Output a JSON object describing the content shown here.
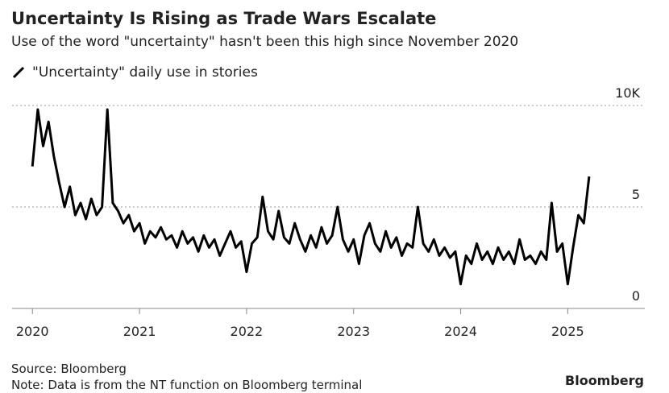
{
  "chart_data": {
    "type": "line",
    "title": "Uncertainty Is Rising as Trade Wars Escalate",
    "subtitle": "Use of the word \"uncertainty\" hasn't been this high since November 2020",
    "x": [
      2020.0,
      2020.05,
      2020.1,
      2020.15,
      2020.2,
      2020.25,
      2020.3,
      2020.35,
      2020.4,
      2020.45,
      2020.5,
      2020.55,
      2020.6,
      2020.65,
      2020.7,
      2020.75,
      2020.8,
      2020.85,
      2020.9,
      2020.95,
      2021.0,
      2021.05,
      2021.1,
      2021.15,
      2021.2,
      2021.25,
      2021.3,
      2021.35,
      2021.4,
      2021.45,
      2021.5,
      2021.55,
      2021.6,
      2021.65,
      2021.7,
      2021.75,
      2021.8,
      2021.85,
      2021.9,
      2021.95,
      2022.0,
      2022.05,
      2022.1,
      2022.15,
      2022.2,
      2022.25,
      2022.3,
      2022.35,
      2022.4,
      2022.45,
      2022.5,
      2022.55,
      2022.6,
      2022.65,
      2022.7,
      2022.75,
      2022.8,
      2022.85,
      2022.9,
      2022.95,
      2023.0,
      2023.05,
      2023.1,
      2023.15,
      2023.2,
      2023.25,
      2023.3,
      2023.35,
      2023.4,
      2023.45,
      2023.5,
      2023.55,
      2023.6,
      2023.65,
      2023.7,
      2023.75,
      2023.8,
      2023.85,
      2023.9,
      2023.95,
      2024.0,
      2024.05,
      2024.1,
      2024.15,
      2024.2,
      2024.25,
      2024.3,
      2024.35,
      2024.4,
      2024.45,
      2024.5,
      2024.55,
      2024.6,
      2024.65,
      2024.7,
      2024.75,
      2024.8,
      2024.85,
      2024.9,
      2024.95,
      2025.0,
      2025.05,
      2025.1,
      2025.15,
      2025.2
    ],
    "series": [
      {
        "name": "\"Uncertainty\" daily use in stories",
        "color": "#000000",
        "values": [
          7.0,
          9.8,
          8.0,
          9.2,
          7.5,
          6.2,
          5.0,
          6.0,
          4.6,
          5.2,
          4.4,
          5.4,
          4.6,
          5.0,
          9.8,
          5.2,
          4.8,
          4.2,
          4.6,
          3.8,
          4.2,
          3.2,
          3.8,
          3.5,
          4.0,
          3.4,
          3.6,
          3.0,
          3.8,
          3.2,
          3.5,
          2.8,
          3.6,
          3.0,
          3.4,
          2.6,
          3.2,
          3.8,
          3.0,
          3.3,
          1.8,
          3.2,
          3.5,
          5.5,
          3.8,
          3.4,
          4.8,
          3.5,
          3.2,
          4.2,
          3.4,
          2.8,
          3.6,
          3.0,
          4.0,
          3.2,
          3.6,
          5.0,
          3.4,
          2.8,
          3.4,
          2.2,
          3.6,
          4.2,
          3.2,
          2.8,
          3.8,
          3.0,
          3.5,
          2.6,
          3.2,
          3.0,
          5.0,
          3.2,
          2.8,
          3.4,
          2.6,
          3.0,
          2.5,
          2.8,
          1.2,
          2.6,
          2.2,
          3.2,
          2.4,
          2.8,
          2.2,
          3.0,
          2.4,
          2.8,
          2.2,
          3.4,
          2.4,
          2.6,
          2.2,
          2.8,
          2.4,
          5.2,
          2.8,
          3.2,
          1.2,
          3.0,
          4.6,
          4.2,
          6.5
        ]
      }
    ],
    "xlim": [
      2019.81,
      2025.72
    ],
    "xticks": [
      2020,
      2021,
      2022,
      2023,
      2024,
      2025
    ],
    "ylim": [
      0,
      10
    ],
    "yticks": [
      0,
      5,
      {
        "value": 10,
        "label": "10K"
      }
    ],
    "grid": true,
    "source": "Source: Bloomberg",
    "note": "Note: Data is from the NT function on Bloomberg terminal",
    "logo": "Bloomberg"
  }
}
